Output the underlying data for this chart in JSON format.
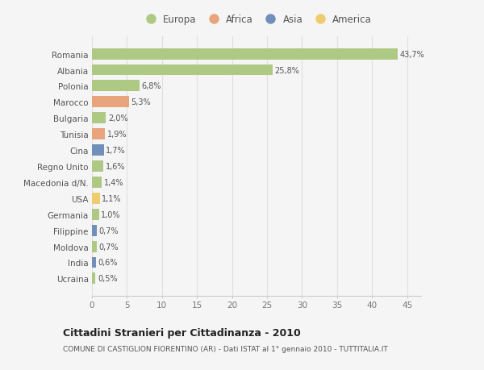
{
  "countries": [
    "Romania",
    "Albania",
    "Polonia",
    "Marocco",
    "Bulgaria",
    "Tunisia",
    "Cina",
    "Regno Unito",
    "Macedonia d/N.",
    "USA",
    "Germania",
    "Filippine",
    "Moldova",
    "India",
    "Ucraina"
  ],
  "values": [
    43.7,
    25.8,
    6.8,
    5.3,
    2.0,
    1.9,
    1.7,
    1.6,
    1.4,
    1.1,
    1.0,
    0.7,
    0.7,
    0.6,
    0.5
  ],
  "labels": [
    "43,7%",
    "25,8%",
    "6,8%",
    "5,3%",
    "2,0%",
    "1,9%",
    "1,7%",
    "1,6%",
    "1,4%",
    "1,1%",
    "1,0%",
    "0,7%",
    "0,7%",
    "0,6%",
    "0,5%"
  ],
  "continents": [
    "Europa",
    "Europa",
    "Europa",
    "Africa",
    "Europa",
    "Africa",
    "Asia",
    "Europa",
    "Europa",
    "America",
    "Europa",
    "Asia",
    "Europa",
    "Asia",
    "Europa"
  ],
  "continent_colors": {
    "Europa": "#aec984",
    "Africa": "#e8a47c",
    "Asia": "#7090ba",
    "America": "#f0cc70"
  },
  "legend_order": [
    "Europa",
    "Africa",
    "Asia",
    "America"
  ],
  "background_color": "#f5f5f5",
  "grid_color": "#e0e0e0",
  "title": "Cittadini Stranieri per Cittadinanza - 2010",
  "subtitle": "COMUNE DI CASTIGLION FIORENTINO (AR) - Dati ISTAT al 1° gennaio 2010 - TUTTITALIA.IT",
  "xlim": [
    0,
    47
  ],
  "xticks": [
    0,
    5,
    10,
    15,
    20,
    25,
    30,
    35,
    40,
    45
  ]
}
